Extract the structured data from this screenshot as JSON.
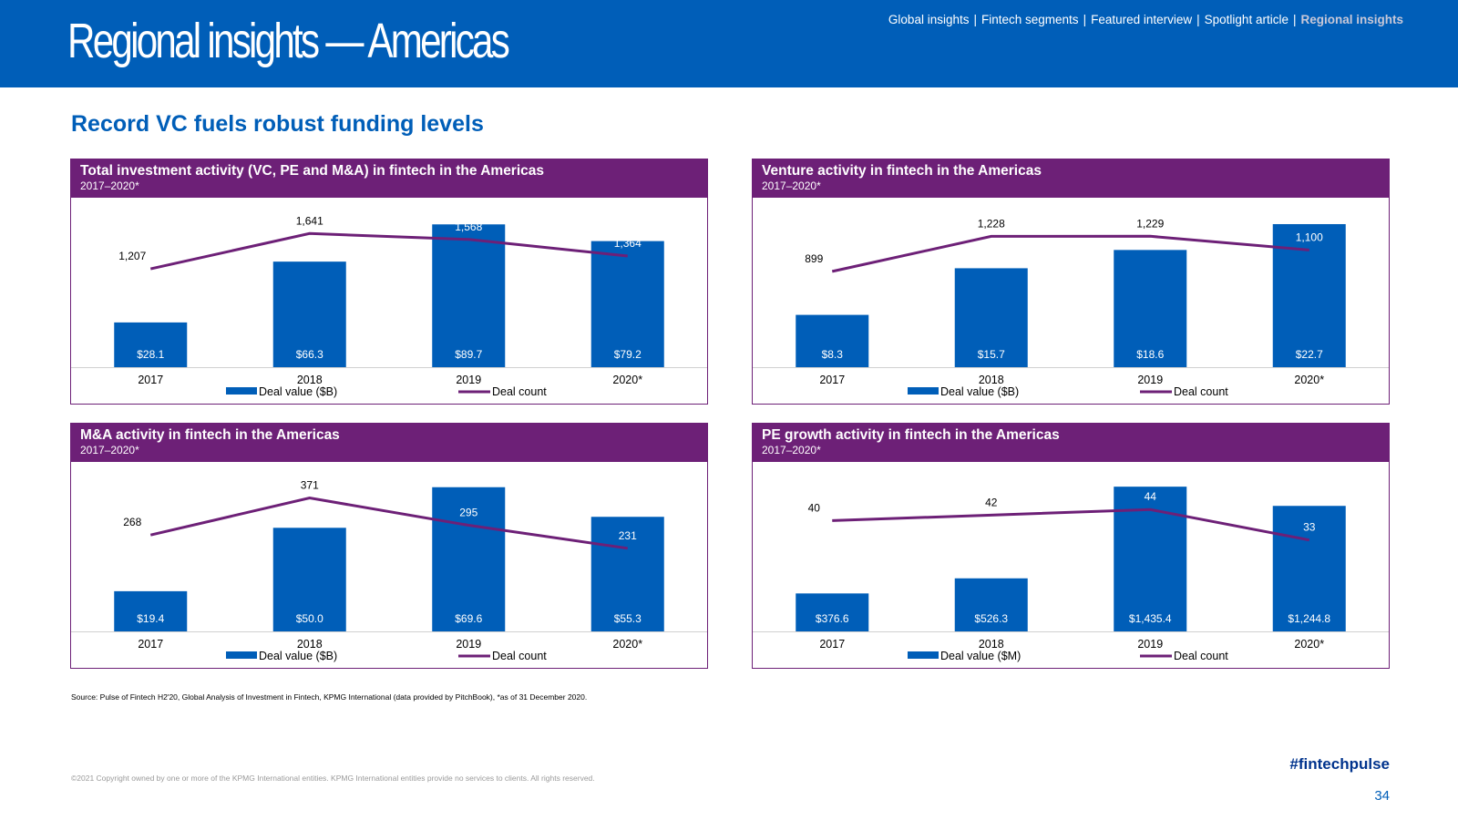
{
  "header": {
    "title": "Regional insights — Americas",
    "nav": [
      "Global insights",
      "Fintech segments",
      "Featured interview",
      "Spotlight article",
      "Regional insights"
    ],
    "nav_separator": "|",
    "active_index": 4
  },
  "subtitle": "Record VC fuels robust funding levels",
  "colors": {
    "bar": "#005EB8",
    "line": "#6D2077",
    "header_bg": "#005EB8",
    "panel_header": "#6D2077"
  },
  "chart_data": [
    {
      "type": "bar",
      "title": "Total investment activity (VC, PE and M&A) in fintech in the Americas",
      "period": "2017–2020*",
      "categories": [
        "2017",
        "2018",
        "2019",
        "2020*"
      ],
      "series": [
        {
          "name": "Deal value ($B)",
          "type": "bar",
          "values": [
            28.1,
            66.3,
            89.7,
            79.2
          ],
          "labels": [
            "$28.1",
            "$66.3",
            "$89.7",
            "$79.2"
          ]
        },
        {
          "name": "Deal count",
          "type": "line",
          "values": [
            1207,
            1641,
            1568,
            1364
          ],
          "labels": [
            "1,207",
            "1,641",
            "1,568",
            "1,364"
          ]
        }
      ],
      "bar_max": 95,
      "line_min": 0,
      "line_max": 1700
    },
    {
      "type": "bar",
      "title": "Venture activity in fintech in the Americas",
      "period": "2017–2020*",
      "categories": [
        "2017",
        "2018",
        "2019",
        "2020*"
      ],
      "series": [
        {
          "name": "Deal value ($B)",
          "type": "bar",
          "values": [
            8.3,
            15.7,
            18.6,
            22.7
          ],
          "labels": [
            "$8.3",
            "$15.7",
            "$18.6",
            "$22.7"
          ]
        },
        {
          "name": "Deal count",
          "type": "line",
          "values": [
            899,
            1228,
            1229,
            1100
          ],
          "labels": [
            "899",
            "1,228",
            "1,229",
            "1,100"
          ]
        }
      ],
      "bar_max": 24,
      "line_min": 0,
      "line_max": 1300
    },
    {
      "type": "bar",
      "title": "M&A activity in fintech in the Americas",
      "period": "2017–2020*",
      "categories": [
        "2017",
        "2018",
        "2019",
        "2020*"
      ],
      "series": [
        {
          "name": "Deal value ($B)",
          "type": "bar",
          "values": [
            19.4,
            50.0,
            69.6,
            55.3
          ],
          "labels": [
            "$19.4",
            "$50.0",
            "$69.6",
            "$55.3"
          ]
        },
        {
          "name": "Deal count",
          "type": "line",
          "values": [
            268,
            371,
            295,
            231
          ],
          "labels": [
            "268",
            "371",
            "295",
            "231"
          ]
        }
      ],
      "bar_max": 73,
      "line_min": 0,
      "line_max": 385
    },
    {
      "type": "bar",
      "title": "PE growth activity in fintech in the Americas",
      "period": "2017–2020*",
      "categories": [
        "2017",
        "2018",
        "2019",
        "2020*"
      ],
      "series": [
        {
          "name": "Deal value ($M)",
          "type": "bar",
          "values": [
            376.6,
            526.3,
            1435.4,
            1244.8
          ],
          "labels": [
            "$376.6",
            "$526.3",
            "$1,435.4",
            "$1,244.8"
          ]
        },
        {
          "name": "Deal count",
          "type": "line",
          "values": [
            40,
            42,
            44,
            33
          ],
          "labels": [
            "40",
            "42",
            "44",
            "33"
          ]
        }
      ],
      "bar_max": 1500,
      "line_min": 0,
      "line_max": 50
    }
  ],
  "footer": {
    "source": "Source: Pulse of Fintech H2'20, Global Analysis of Investment in Fintech, KPMG International (data provided by PitchBook), *as of 31 December 2020.",
    "copyright": "©2021 Copyright owned by one or more of the KPMG International entities. KPMG International entities provide no services to clients. All rights reserved.",
    "hashtag": "#fintechpulse",
    "page_number": "34"
  }
}
